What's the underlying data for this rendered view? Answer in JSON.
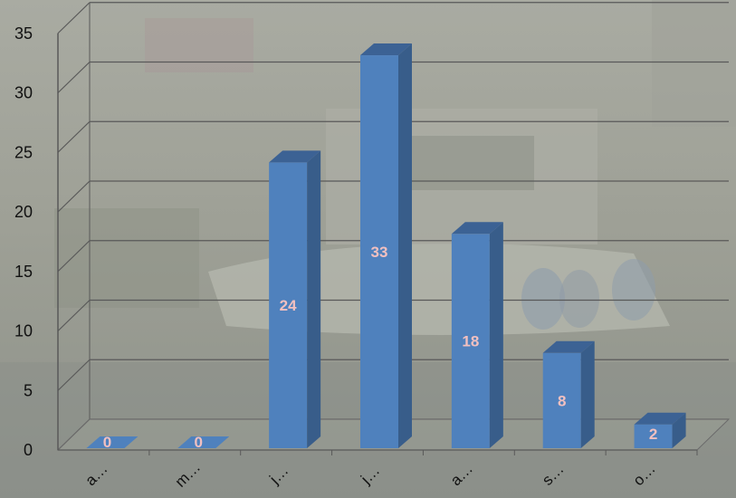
{
  "chart_data": {
    "type": "bar",
    "categories": [
      "a…",
      "m…",
      "j…",
      "j…",
      "a…",
      "s…",
      "o…"
    ],
    "values": [
      0,
      0,
      24,
      33,
      18,
      8,
      2
    ],
    "ylim": [
      0,
      35
    ],
    "yticks": [
      0,
      5,
      10,
      15,
      20,
      25,
      30,
      35
    ],
    "grid": true,
    "style": "3d-column",
    "bar_color": "#4f81bd",
    "bar_side_color": "#385d8a",
    "bar_top_color": "#3c6294",
    "data_label_color": "#f2c0c0",
    "gridline_color": "#595959"
  }
}
